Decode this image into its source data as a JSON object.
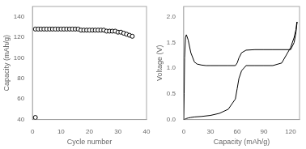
{
  "chart_data": [
    {
      "type": "scatter",
      "xlabel": "Cycle number",
      "ylabel": "Capacity (mAh/g)",
      "xlim": [
        0,
        40
      ],
      "ylim": [
        40,
        150
      ],
      "xticks": [
        0,
        10,
        20,
        30,
        40
      ],
      "yticks": [
        40,
        60,
        80,
        100,
        120,
        140
      ],
      "grid": false,
      "color": "#000000",
      "series": [
        {
          "x": [
            1,
            2,
            3,
            4,
            5,
            6,
            7,
            8,
            9,
            10,
            11,
            12,
            13,
            14,
            15,
            16,
            17,
            18,
            19,
            20,
            21,
            22,
            23,
            24,
            25,
            26,
            27,
            28,
            29,
            30,
            31,
            32,
            33,
            34,
            35
          ],
          "values": [
            128,
            128,
            128,
            128,
            128,
            128,
            128,
            128,
            128,
            128,
            128,
            128,
            128,
            128,
            128,
            128,
            127,
            127,
            127,
            127,
            127,
            127,
            127,
            127,
            127,
            126,
            126,
            126,
            126,
            125,
            125,
            124,
            123,
            122,
            121
          ]
        },
        {
          "x": [
            1
          ],
          "values": [
            42
          ]
        }
      ]
    },
    {
      "type": "line",
      "xlabel": "Capacity (mAh/g)",
      "ylabel": "Voltage (V)",
      "xlim": [
        0,
        130
      ],
      "ylim": [
        0,
        2.2
      ],
      "xticks": [
        0,
        30,
        60,
        90,
        120
      ],
      "yticks": [
        {
          "value": 0,
          "label": "0.0"
        },
        0.5,
        {
          "value": 1,
          "label": "1.0"
        },
        1.5,
        {
          "value": 2,
          "label": "2.0"
        }
      ],
      "grid": false,
      "color": "#000000",
      "series": [
        {
          "x": [
            0,
            0.5,
            1,
            2,
            3,
            5,
            8,
            12,
            15,
            20,
            25,
            30,
            40,
            50,
            58,
            60,
            62,
            65,
            70,
            80,
            90,
            100,
            110,
            120,
            124,
            126,
            127,
            127.5
          ],
          "values": [
            0.0,
            0.5,
            1.2,
            1.6,
            1.65,
            1.55,
            1.3,
            1.12,
            1.08,
            1.06,
            1.05,
            1.05,
            1.05,
            1.05,
            1.05,
            1.1,
            1.2,
            1.3,
            1.35,
            1.36,
            1.36,
            1.36,
            1.36,
            1.36,
            1.5,
            1.7,
            1.85,
            1.9
          ]
        },
        {
          "x": [
            127,
            126,
            124,
            120,
            110,
            100,
            90,
            80,
            70,
            65,
            62,
            60,
            58,
            50,
            40,
            30,
            20,
            12,
            8,
            5,
            3,
            2,
            1,
            0.5,
            0
          ],
          "values": [
            1.9,
            1.75,
            1.6,
            1.4,
            1.1,
            1.05,
            1.05,
            1.05,
            1.05,
            0.95,
            0.8,
            0.6,
            0.4,
            0.2,
            0.12,
            0.08,
            0.06,
            0.05,
            0.04,
            0.03,
            0.02,
            0.01,
            0.005,
            0.002,
            0.0
          ]
        }
      ]
    }
  ]
}
